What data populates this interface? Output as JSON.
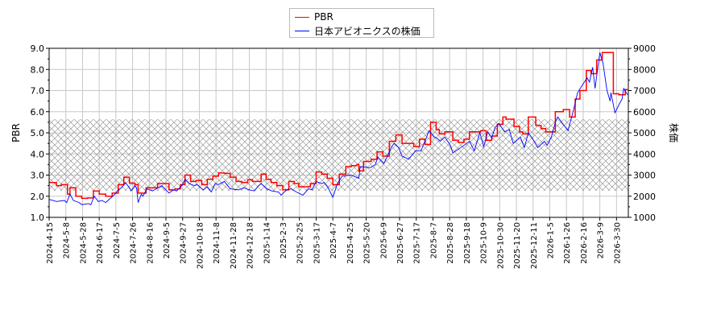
{
  "chart_data": {
    "type": "line",
    "title": "",
    "xlabel": "",
    "ylabel_left": "PBR",
    "ylabel_right": "株価",
    "ylim_left": [
      1.0,
      9.0
    ],
    "ylim_right": [
      1000,
      9000
    ],
    "yticks_left": [
      "1.0",
      "2.0",
      "3.0",
      "4.0",
      "5.0",
      "6.0",
      "7.0",
      "8.0",
      "9.0"
    ],
    "yticks_right": [
      "1000",
      "2000",
      "3000",
      "4000",
      "5000",
      "6000",
      "7000",
      "8000",
      "9000"
    ],
    "xticks": [
      "2024-4-15",
      "2024-5-8",
      "2024-5-28",
      "2024-6-17",
      "2024-7-5",
      "2024-7-26",
      "2024-8-16",
      "2024-9-5",
      "2024-9-27",
      "2024-10-18",
      "2024-11-8",
      "2024-11-28",
      "2024-12-18",
      "2025-1-14",
      "2025-2-3",
      "2025-2-25",
      "2025-3-17",
      "2025-4-7",
      "2025-4-25",
      "2025-5-20",
      "2025-6-9",
      "2025-6-27",
      "2025-7-17",
      "2025-8-7",
      "2025-8-28",
      "2025-9-18",
      "2025-10-9",
      "2025-10-30",
      "2025-11-20",
      "2025-12-11",
      "2026-1-5",
      "2026-1-26",
      "2026-2-16",
      "2026-3-9",
      "2026-3-30"
    ],
    "grid": true,
    "legend_position": "top-center",
    "shaded_band_pbr": [
      2.26,
      5.64
    ],
    "series": [
      {
        "name": "PBR",
        "axis": "left",
        "color": "#ff0000",
        "step": true,
        "points": [
          [
            "2024-04-15",
            2.65
          ],
          [
            "2024-04-25",
            2.5
          ],
          [
            "2024-05-02",
            2.55
          ],
          [
            "2024-05-10",
            2.1
          ],
          [
            "2024-05-13",
            2.4
          ],
          [
            "2024-05-20",
            2.0
          ],
          [
            "2024-05-27",
            1.9
          ],
          [
            "2024-06-03",
            1.92
          ],
          [
            "2024-06-10",
            2.25
          ],
          [
            "2024-06-17",
            2.1
          ],
          [
            "2024-06-24",
            2.0
          ],
          [
            "2024-07-01",
            2.15
          ],
          [
            "2024-07-08",
            2.55
          ],
          [
            "2024-07-15",
            2.9
          ],
          [
            "2024-07-22",
            2.62
          ],
          [
            "2024-07-29",
            2.55
          ],
          [
            "2024-08-02",
            2.15
          ],
          [
            "2024-08-12",
            2.4
          ],
          [
            "2024-08-26",
            2.6
          ],
          [
            "2024-09-09",
            2.3
          ],
          [
            "2024-09-17",
            2.35
          ],
          [
            "2024-09-24",
            2.55
          ],
          [
            "2024-09-30",
            3.0
          ],
          [
            "2024-10-07",
            2.7
          ],
          [
            "2024-10-14",
            2.75
          ],
          [
            "2024-10-21",
            2.55
          ],
          [
            "2024-10-28",
            2.8
          ],
          [
            "2024-11-04",
            2.95
          ],
          [
            "2024-11-11",
            3.1
          ],
          [
            "2024-11-18",
            3.08
          ],
          [
            "2024-11-25",
            2.9
          ],
          [
            "2024-12-02",
            2.7
          ],
          [
            "2024-12-09",
            2.65
          ],
          [
            "2024-12-16",
            2.78
          ],
          [
            "2024-12-23",
            2.7
          ],
          [
            "2025-01-06",
            3.05
          ],
          [
            "2025-01-14",
            2.8
          ],
          [
            "2025-01-20",
            2.65
          ],
          [
            "2025-01-27",
            2.5
          ],
          [
            "2025-02-03",
            2.3
          ],
          [
            "2025-02-11",
            2.7
          ],
          [
            "2025-02-18",
            2.6
          ],
          [
            "2025-02-24",
            2.45
          ],
          [
            "2025-03-10",
            2.6
          ],
          [
            "2025-03-17",
            3.15
          ],
          [
            "2025-03-24",
            3.05
          ],
          [
            "2025-03-31",
            2.85
          ],
          [
            "2025-04-07",
            2.55
          ],
          [
            "2025-04-14",
            3.05
          ],
          [
            "2025-04-21",
            3.4
          ],
          [
            "2025-04-28",
            3.45
          ],
          [
            "2025-05-06",
            3.5
          ],
          [
            "2025-05-09",
            3.2
          ],
          [
            "2025-05-16",
            3.65
          ],
          [
            "2025-05-26",
            3.75
          ],
          [
            "2025-06-02",
            4.1
          ],
          [
            "2025-06-09",
            3.9
          ],
          [
            "2025-06-16",
            4.6
          ],
          [
            "2025-06-23",
            4.9
          ],
          [
            "2025-06-30",
            4.5
          ],
          [
            "2025-07-14",
            4.35
          ],
          [
            "2025-07-21",
            4.7
          ],
          [
            "2025-07-28",
            4.45
          ],
          [
            "2025-08-04",
            5.5
          ],
          [
            "2025-08-11",
            5.15
          ],
          [
            "2025-08-15",
            4.95
          ],
          [
            "2025-08-22",
            5.05
          ],
          [
            "2025-09-01",
            4.65
          ],
          [
            "2025-09-08",
            4.55
          ],
          [
            "2025-09-15",
            4.7
          ],
          [
            "2025-09-22",
            5.05
          ],
          [
            "2025-10-06",
            5.1
          ],
          [
            "2025-10-13",
            4.65
          ],
          [
            "2025-10-20",
            4.85
          ],
          [
            "2025-10-27",
            5.4
          ],
          [
            "2025-11-03",
            5.75
          ],
          [
            "2025-11-07",
            5.65
          ],
          [
            "2025-11-17",
            5.3
          ],
          [
            "2025-11-24",
            5.05
          ],
          [
            "2025-11-28",
            4.95
          ],
          [
            "2025-12-05",
            5.75
          ],
          [
            "2025-12-15",
            5.35
          ],
          [
            "2025-12-23",
            5.2
          ],
          [
            "2025-12-30",
            5.05
          ],
          [
            "2026-01-12",
            6.0
          ],
          [
            "2026-01-22",
            6.1
          ],
          [
            "2026-01-30",
            5.75
          ],
          [
            "2026-02-06",
            6.6
          ],
          [
            "2026-02-12",
            7.0
          ],
          [
            "2026-02-20",
            7.95
          ],
          [
            "2026-02-26",
            7.8
          ],
          [
            "2026-03-05",
            8.45
          ],
          [
            "2026-03-12",
            8.8
          ],
          [
            "2026-03-26",
            6.85
          ],
          [
            "2026-04-02",
            6.8
          ],
          [
            "2026-04-10",
            7.05
          ],
          [
            "2026-04-13",
            7.05
          ]
        ]
      },
      {
        "name": "日本アビオニクスの株価",
        "axis": "right",
        "color": "#0000ff",
        "step": false,
        "points": [
          [
            "2024-04-15",
            1850
          ],
          [
            "2024-04-25",
            1750
          ],
          [
            "2024-05-06",
            1800
          ],
          [
            "2024-05-09",
            1700
          ],
          [
            "2024-05-13",
            2100
          ],
          [
            "2024-05-17",
            1800
          ],
          [
            "2024-05-24",
            1700
          ],
          [
            "2024-05-27",
            1600
          ],
          [
            "2024-06-04",
            1650
          ],
          [
            "2024-06-07",
            1600
          ],
          [
            "2024-06-11",
            2000
          ],
          [
            "2024-06-16",
            1750
          ],
          [
            "2024-06-20",
            1800
          ],
          [
            "2024-06-24",
            1700
          ],
          [
            "2024-06-29",
            1900
          ],
          [
            "2024-07-03",
            2050
          ],
          [
            "2024-07-08",
            2300
          ],
          [
            "2024-07-12",
            2400
          ],
          [
            "2024-07-17",
            2650
          ],
          [
            "2024-07-21",
            2450
          ],
          [
            "2024-07-24",
            2250
          ],
          [
            "2024-07-29",
            2500
          ],
          [
            "2024-07-31",
            2400
          ],
          [
            "2024-08-02",
            1700
          ],
          [
            "2024-08-06",
            2100
          ],
          [
            "2024-08-08",
            2000
          ],
          [
            "2024-08-13",
            2350
          ],
          [
            "2024-08-20",
            2250
          ],
          [
            "2024-08-31",
            2500
          ],
          [
            "2024-09-09",
            2150
          ],
          [
            "2024-09-15",
            2300
          ],
          [
            "2024-09-19",
            2250
          ],
          [
            "2024-09-26",
            2500
          ],
          [
            "2024-09-30",
            2800
          ],
          [
            "2024-10-05",
            2600
          ],
          [
            "2024-10-12",
            2500
          ],
          [
            "2024-10-15",
            2550
          ],
          [
            "2024-10-23",
            2300
          ],
          [
            "2024-10-28",
            2450
          ],
          [
            "2024-11-02",
            2200
          ],
          [
            "2024-11-07",
            2600
          ],
          [
            "2024-11-11",
            2550
          ],
          [
            "2024-11-18",
            2700
          ],
          [
            "2024-11-25",
            2350
          ],
          [
            "2024-12-05",
            2300
          ],
          [
            "2024-12-11",
            2400
          ],
          [
            "2024-12-18",
            2300
          ],
          [
            "2024-12-26",
            2250
          ],
          [
            "2025-01-02",
            2500
          ],
          [
            "2025-01-06",
            2600
          ],
          [
            "2025-01-15",
            2350
          ],
          [
            "2025-01-21",
            2250
          ],
          [
            "2025-01-29",
            2200
          ],
          [
            "2025-02-01",
            2050
          ],
          [
            "2025-02-08",
            2300
          ],
          [
            "2025-02-14",
            2350
          ],
          [
            "2025-02-21",
            2200
          ],
          [
            "2025-03-01",
            2050
          ],
          [
            "2025-03-08",
            2350
          ],
          [
            "2025-03-12",
            2300
          ],
          [
            "2025-03-17",
            2700
          ],
          [
            "2025-03-24",
            2600
          ],
          [
            "2025-03-27",
            2650
          ],
          [
            "2025-04-01",
            2400
          ],
          [
            "2025-04-07",
            1950
          ],
          [
            "2025-04-12",
            2600
          ],
          [
            "2025-04-17",
            2950
          ],
          [
            "2025-04-27",
            3000
          ],
          [
            "2025-05-09",
            2850
          ],
          [
            "2025-05-11",
            3400
          ],
          [
            "2025-05-25",
            3350
          ],
          [
            "2025-05-31",
            3500
          ],
          [
            "2025-06-03",
            3850
          ],
          [
            "2025-06-10",
            3550
          ],
          [
            "2025-06-14",
            3900
          ],
          [
            "2025-06-18",
            4300
          ],
          [
            "2025-06-21",
            4500
          ],
          [
            "2025-06-26",
            4300
          ],
          [
            "2025-06-30",
            3900
          ],
          [
            "2025-07-08",
            3750
          ],
          [
            "2025-07-16",
            4150
          ],
          [
            "2025-07-23",
            4150
          ],
          [
            "2025-07-30",
            4800
          ],
          [
            "2025-08-02",
            5100
          ],
          [
            "2025-08-09",
            4800
          ],
          [
            "2025-08-12",
            4750
          ],
          [
            "2025-08-16",
            4600
          ],
          [
            "2025-08-22",
            4800
          ],
          [
            "2025-08-29",
            4400
          ],
          [
            "2025-09-01",
            4050
          ],
          [
            "2025-09-13",
            4350
          ],
          [
            "2025-09-22",
            4600
          ],
          [
            "2025-09-28",
            4150
          ],
          [
            "2025-10-05",
            5000
          ],
          [
            "2025-10-10",
            4350
          ],
          [
            "2025-10-15",
            5050
          ],
          [
            "2025-10-20",
            4750
          ],
          [
            "2025-10-24",
            5250
          ],
          [
            "2025-10-29",
            5450
          ],
          [
            "2025-11-05",
            5050
          ],
          [
            "2025-11-11",
            5150
          ],
          [
            "2025-11-16",
            4500
          ],
          [
            "2025-11-25",
            4800
          ],
          [
            "2025-11-30",
            4300
          ],
          [
            "2025-12-05",
            5000
          ],
          [
            "2025-12-10",
            4750
          ],
          [
            "2025-12-18",
            4300
          ],
          [
            "2025-12-28",
            4600
          ],
          [
            "2026-01-01",
            4400
          ],
          [
            "2026-01-07",
            4800
          ],
          [
            "2026-01-12",
            5500
          ],
          [
            "2026-01-15",
            5750
          ],
          [
            "2026-01-28",
            5100
          ],
          [
            "2026-02-04",
            6100
          ],
          [
            "2026-02-09",
            6900
          ],
          [
            "2026-02-14",
            7200
          ],
          [
            "2026-02-21",
            7600
          ],
          [
            "2026-02-24",
            7400
          ],
          [
            "2026-02-28",
            8100
          ],
          [
            "2026-03-03",
            7100
          ],
          [
            "2026-03-09",
            8800
          ],
          [
            "2026-03-13",
            8300
          ],
          [
            "2026-03-18",
            7000
          ],
          [
            "2026-03-22",
            6500
          ],
          [
            "2026-03-23",
            6900
          ],
          [
            "2026-03-28",
            5950
          ],
          [
            "2026-04-03",
            6400
          ],
          [
            "2026-04-06",
            6600
          ],
          [
            "2026-04-08",
            7100
          ],
          [
            "2026-04-13",
            6800
          ]
        ]
      }
    ]
  },
  "legend": {
    "items": [
      "PBR",
      "日本アビオニクスの株価"
    ]
  }
}
